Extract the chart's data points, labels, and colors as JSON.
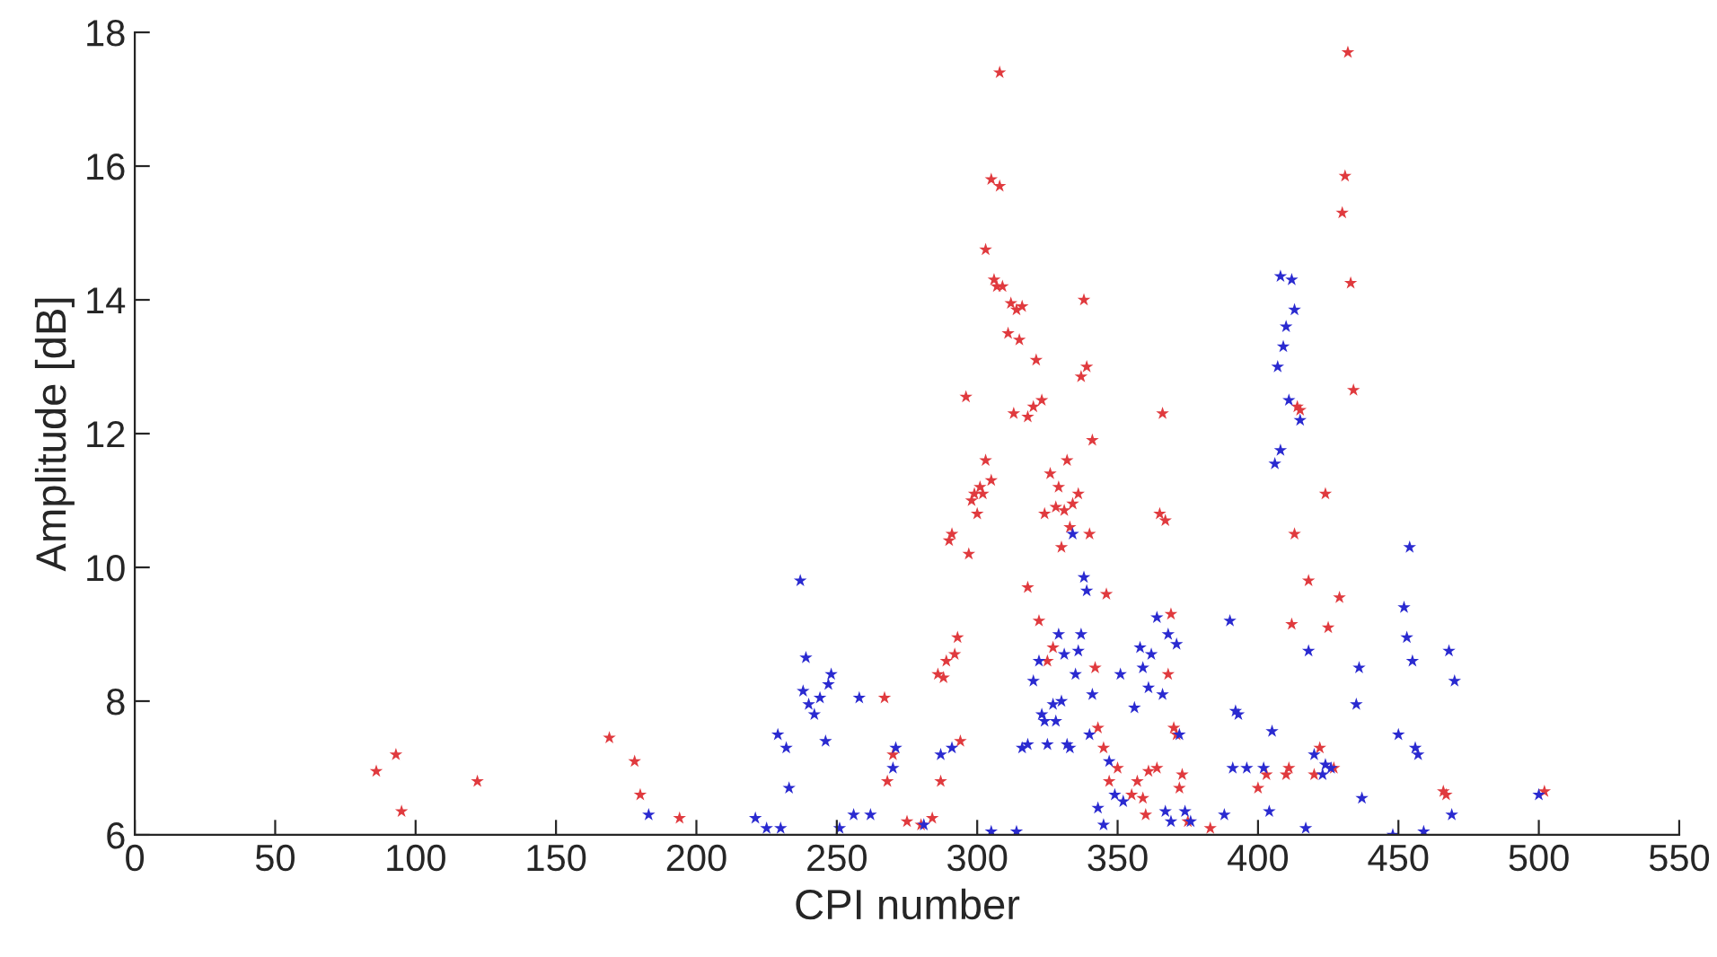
{
  "chart_data": {
    "type": "scatter",
    "xlabel": "CPI number",
    "ylabel": "Amplitude [dB]",
    "xlim": [
      0,
      550
    ],
    "xticks": [
      0,
      50,
      100,
      150,
      200,
      250,
      300,
      350,
      400,
      450,
      500,
      550
    ],
    "ylim": [
      6,
      18
    ],
    "yticks": [
      6,
      8,
      10,
      12,
      14,
      16,
      18
    ],
    "grid": false,
    "marker": "star",
    "series": [
      {
        "color": "#e03a3e",
        "x": [
          86,
          93,
          95,
          122,
          169,
          178,
          180,
          194,
          267,
          268,
          270,
          275,
          280,
          284,
          286,
          287,
          288,
          289,
          290,
          291,
          292,
          293,
          294,
          296,
          297,
          298,
          299,
          300,
          301,
          302,
          303,
          303,
          305,
          305,
          306,
          307,
          308,
          308,
          309,
          311,
          312,
          313,
          314,
          315,
          316,
          318,
          318,
          320,
          321,
          322,
          323,
          324,
          325,
          326,
          327,
          328,
          329,
          330,
          331,
          332,
          333,
          334,
          336,
          337,
          338,
          339,
          340,
          341,
          342,
          343,
          345,
          346,
          347,
          350,
          355,
          357,
          359,
          360,
          361,
          364,
          365,
          366,
          367,
          368,
          369,
          370,
          371,
          372,
          373,
          375,
          383,
          400,
          403,
          410,
          411,
          412,
          413,
          414,
          415,
          418,
          420,
          422,
          424,
          425,
          427,
          429,
          430,
          431,
          432,
          433,
          434,
          466,
          467,
          502
        ],
        "values": [
          6.95,
          7.2,
          6.35,
          6.8,
          7.45,
          7.1,
          6.6,
          6.25,
          8.05,
          6.8,
          7.2,
          6.2,
          6.15,
          6.25,
          8.4,
          6.8,
          8.35,
          8.6,
          10.4,
          10.5,
          8.7,
          8.95,
          7.4,
          12.55,
          10.2,
          11.0,
          11.1,
          10.8,
          11.2,
          11.1,
          11.6,
          14.75,
          11.3,
          15.8,
          14.3,
          14.2,
          15.7,
          17.4,
          14.2,
          13.5,
          13.95,
          12.3,
          13.85,
          13.4,
          13.9,
          12.25,
          9.7,
          12.4,
          13.1,
          9.2,
          12.5,
          10.8,
          8.6,
          11.4,
          8.8,
          10.9,
          11.2,
          10.3,
          10.85,
          11.6,
          10.6,
          10.95,
          11.1,
          12.85,
          14.0,
          13.0,
          10.5,
          11.9,
          8.5,
          7.6,
          7.3,
          9.6,
          6.8,
          7.0,
          6.6,
          6.8,
          6.55,
          6.3,
          6.95,
          7.0,
          10.8,
          12.3,
          10.7,
          8.4,
          9.3,
          7.6,
          7.5,
          6.7,
          6.9,
          6.2,
          6.1,
          6.7,
          6.9,
          6.9,
          7.0,
          9.15,
          10.5,
          12.4,
          12.35,
          9.8,
          6.9,
          7.3,
          11.1,
          9.1,
          7.0,
          9.55,
          15.3,
          15.85,
          17.7,
          14.25,
          12.65,
          6.65,
          6.6,
          6.65
        ]
      },
      {
        "color": "#2a2ad0",
        "x": [
          183,
          221,
          225,
          229,
          230,
          232,
          233,
          237,
          238,
          239,
          240,
          242,
          244,
          246,
          247,
          248,
          251,
          256,
          258,
          262,
          270,
          271,
          281,
          287,
          291,
          305,
          314,
          316,
          318,
          320,
          322,
          323,
          324,
          325,
          327,
          328,
          329,
          330,
          331,
          332,
          333,
          334,
          335,
          336,
          337,
          338,
          339,
          340,
          341,
          343,
          345,
          347,
          349,
          351,
          352,
          356,
          358,
          359,
          361,
          362,
          364,
          366,
          367,
          368,
          369,
          371,
          372,
          374,
          376,
          388,
          390,
          391,
          392,
          393,
          396,
          402,
          404,
          405,
          406,
          407,
          408,
          408,
          409,
          410,
          411,
          412,
          413,
          415,
          417,
          418,
          420,
          423,
          424,
          426,
          435,
          436,
          437,
          448,
          450,
          452,
          453,
          454,
          455,
          456,
          457,
          459,
          468,
          469,
          470,
          500
        ],
        "values": [
          6.3,
          6.25,
          6.1,
          7.5,
          6.1,
          7.3,
          6.7,
          9.8,
          8.15,
          8.65,
          7.95,
          7.8,
          8.05,
          7.4,
          8.25,
          8.4,
          6.1,
          6.3,
          8.05,
          6.3,
          7.0,
          7.3,
          6.15,
          7.2,
          7.3,
          6.05,
          6.05,
          7.3,
          7.35,
          8.3,
          8.6,
          7.8,
          7.7,
          7.35,
          7.95,
          7.7,
          9.0,
          8.0,
          8.7,
          7.35,
          7.3,
          10.5,
          8.4,
          8.75,
          9.0,
          9.85,
          9.65,
          7.5,
          8.1,
          6.4,
          6.15,
          7.1,
          6.6,
          8.4,
          6.5,
          7.9,
          8.8,
          8.5,
          8.2,
          8.7,
          9.25,
          8.1,
          6.35,
          9.0,
          6.2,
          8.85,
          7.5,
          6.35,
          6.2,
          6.3,
          9.2,
          7.0,
          7.85,
          7.8,
          7.0,
          7.0,
          6.35,
          7.55,
          11.55,
          13.0,
          11.75,
          14.35,
          13.3,
          13.6,
          12.5,
          14.3,
          13.85,
          12.2,
          6.1,
          8.75,
          7.2,
          6.9,
          7.05,
          7.0,
          7.95,
          8.5,
          6.55,
          6.0,
          7.5,
          9.4,
          8.95,
          10.3,
          8.6,
          7.3,
          7.2,
          6.05,
          8.75,
          6.3,
          8.3,
          6.6
        ]
      }
    ]
  }
}
